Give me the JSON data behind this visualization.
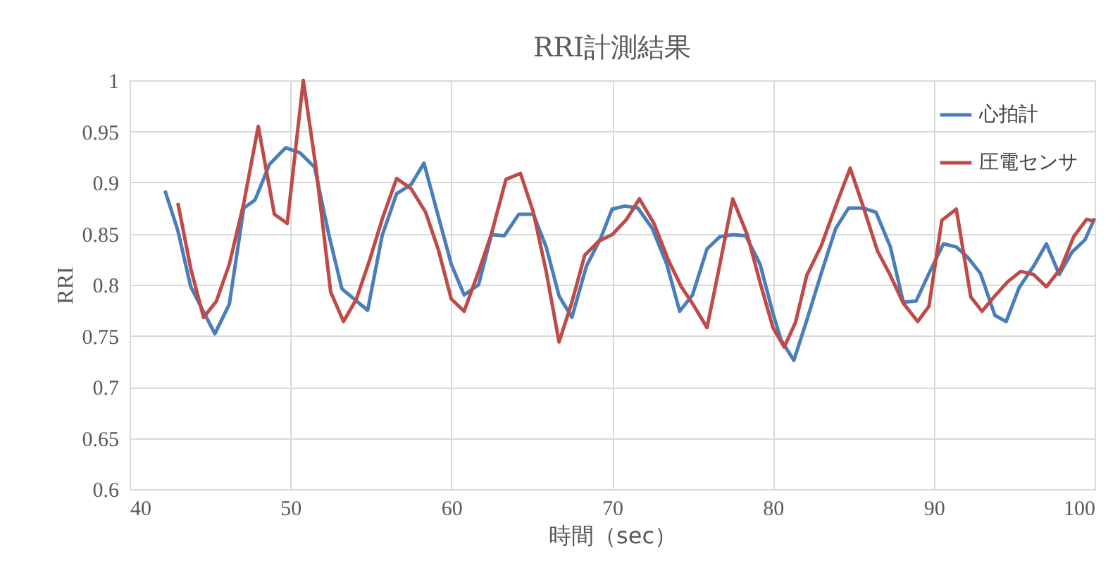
{
  "chart_data": {
    "type": "line",
    "title": "RRI計測結果",
    "xlabel": "時間（sec）",
    "ylabel": "RRI",
    "xlim": [
      40,
      100
    ],
    "xticks": [
      40,
      50,
      60,
      70,
      80,
      90,
      100
    ],
    "ylim": [
      0.6,
      1
    ],
    "yticks": [
      0.6,
      0.65,
      0.7,
      0.75,
      0.8,
      0.85,
      0.9,
      0.95,
      1
    ],
    "grid": true,
    "legend": "top right",
    "marker": "none",
    "line_style": "solid",
    "series": [
      {
        "name": "心拍計",
        "color": "#4a7ebb",
        "x": [
          42.2,
          43.0,
          43.8,
          45.3,
          46.2,
          47.1,
          47.8,
          48.7,
          49.7,
          50.6,
          51.5,
          52.4,
          53.2,
          54.8,
          55.7,
          56.6,
          57.5,
          58.3,
          60.0,
          60.8,
          61.7,
          62.5,
          63.3,
          64.2,
          65.1,
          65.9,
          66.7,
          67.5,
          68.4,
          69.3,
          70.0,
          70.8,
          71.6,
          72.5,
          73.4,
          74.2,
          75.0,
          75.9,
          76.7,
          77.5,
          78.3,
          79.2,
          80.0,
          80.5,
          81.3,
          82.1,
          83.0,
          83.9,
          84.7,
          85.6,
          86.4,
          87.3,
          88.1,
          88.9,
          89.7,
          90.6,
          91.4,
          92.1,
          92.9,
          93.8,
          94.5,
          95.3,
          96.2,
          97.0,
          97.8,
          98.6,
          99.4,
          100.0
        ],
        "values": [
          0.892,
          0.853,
          0.798,
          0.752,
          0.781,
          0.875,
          0.883,
          0.918,
          0.934,
          0.929,
          0.915,
          0.848,
          0.796,
          0.775,
          0.848,
          0.889,
          0.898,
          0.919,
          0.82,
          0.79,
          0.8,
          0.849,
          0.848,
          0.869,
          0.869,
          0.837,
          0.789,
          0.768,
          0.818,
          0.846,
          0.874,
          0.877,
          0.875,
          0.855,
          0.82,
          0.774,
          0.79,
          0.835,
          0.847,
          0.849,
          0.848,
          0.82,
          0.772,
          0.746,
          0.726,
          0.765,
          0.811,
          0.855,
          0.875,
          0.875,
          0.871,
          0.837,
          0.783,
          0.784,
          0.811,
          0.84,
          0.837,
          0.827,
          0.811,
          0.77,
          0.764,
          0.797,
          0.818,
          0.84,
          0.81,
          0.832,
          0.844,
          0.865
        ]
      },
      {
        "name": "圧電センサ",
        "color": "#be4b48",
        "x": [
          43.0,
          43.8,
          44.6,
          45.4,
          46.2,
          47.1,
          48.0,
          49.0,
          49.8,
          50.8,
          51.6,
          52.5,
          53.3,
          54.1,
          54.9,
          55.7,
          56.6,
          57.5,
          58.4,
          59.2,
          60.0,
          60.8,
          61.7,
          62.5,
          63.4,
          64.3,
          65.1,
          65.9,
          66.7,
          67.5,
          68.3,
          69.2,
          70.0,
          70.9,
          71.7,
          72.6,
          73.5,
          74.3,
          75.1,
          75.9,
          76.7,
          77.5,
          78.4,
          79.2,
          80.0,
          80.7,
          81.4,
          82.1,
          83.0,
          83.9,
          84.8,
          85.6,
          86.5,
          87.3,
          88.1,
          89.0,
          89.7,
          90.5,
          91.4,
          92.3,
          93.0,
          93.8,
          94.6,
          95.4,
          96.2,
          97.0,
          97.9,
          98.7,
          99.5,
          100.0
        ],
        "values": [
          0.88,
          0.816,
          0.768,
          0.784,
          0.82,
          0.88,
          0.955,
          0.869,
          0.86,
          1.0,
          0.913,
          0.793,
          0.764,
          0.786,
          0.823,
          0.864,
          0.904,
          0.894,
          0.871,
          0.834,
          0.786,
          0.774,
          0.813,
          0.85,
          0.903,
          0.909,
          0.871,
          0.813,
          0.744,
          0.783,
          0.829,
          0.843,
          0.849,
          0.864,
          0.884,
          0.86,
          0.824,
          0.798,
          0.779,
          0.758,
          0.82,
          0.884,
          0.849,
          0.802,
          0.758,
          0.739,
          0.763,
          0.809,
          0.838,
          0.877,
          0.914,
          0.877,
          0.833,
          0.809,
          0.782,
          0.764,
          0.779,
          0.863,
          0.874,
          0.788,
          0.774,
          0.789,
          0.803,
          0.813,
          0.81,
          0.798,
          0.816,
          0.847,
          0.864,
          0.862
        ]
      }
    ]
  }
}
